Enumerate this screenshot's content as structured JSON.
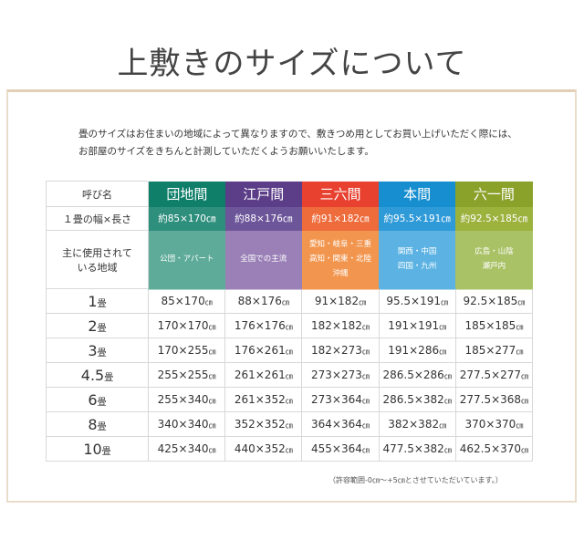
{
  "title": "上敷きのサイズについて",
  "intro": [
    "畳のサイズはお住まいの地域によって異なりますので、敷きつめ用としてお買い上げいただく際には、",
    "お部屋のサイズをきちんと計測していただくようお願いいたします。"
  ],
  "table": {
    "row_labels": {
      "name": "呼び名",
      "size": "１畳の幅×長さ",
      "region": [
        "主に使用されて",
        "いる地域"
      ]
    },
    "columns": [
      {
        "name": "団地間",
        "size": "約85×170㎝",
        "region": [
          "公団・アパート"
        ],
        "colors": [
          "#0f7f6a",
          "#2f8f7d",
          "#5eab99"
        ]
      },
      {
        "name": "江戸間",
        "size": "約88×176㎝",
        "region": [
          "全国での主流"
        ],
        "colors": [
          "#5b3d88",
          "#6c5599",
          "#9a80b7"
        ]
      },
      {
        "name": "三六間",
        "size": "約91×182㎝",
        "region": [
          "愛知・岐阜・三重",
          "高知・関東・北陸",
          "沖縄"
        ],
        "colors": [
          "#e8412f",
          "#ee6b3b",
          "#f2964f"
        ]
      },
      {
        "name": "本間",
        "size": "約95.5×191㎝",
        "region": [
          "関西・中国",
          "四国・九州"
        ],
        "colors": [
          "#168ecf",
          "#2f9ad8",
          "#5cb3e3"
        ]
      },
      {
        "name": "六一間",
        "size": "約92.5×185㎝",
        "region": [
          "広島・山陰",
          "瀬戸内"
        ],
        "colors": [
          "#8aa12a",
          "#9bb23d",
          "#aac266"
        ]
      }
    ],
    "unit": "㎝",
    "rows": [
      {
        "n": "1",
        "u": "畳",
        "v": [
          "85×170",
          "88×176",
          "91×182",
          "95.5×191",
          "92.5×185"
        ]
      },
      {
        "n": "2",
        "u": "畳",
        "v": [
          "170×170",
          "176×176",
          "182×182",
          "191×191",
          "185×185"
        ]
      },
      {
        "n": "3",
        "u": "畳",
        "v": [
          "170×255",
          "176×261",
          "182×273",
          "191×286",
          "185×277"
        ]
      },
      {
        "n": "4.5",
        "u": "畳",
        "v": [
          "255×255",
          "261×261",
          "273×273",
          "286.5×286",
          "277.5×277"
        ]
      },
      {
        "n": "6",
        "u": "畳",
        "v": [
          "255×340",
          "261×352",
          "273×364",
          "286.5×382",
          "277.5×368"
        ]
      },
      {
        "n": "8",
        "u": "畳",
        "v": [
          "340×340",
          "352×352",
          "364×364",
          "382×382",
          "370×370"
        ]
      },
      {
        "n": "10",
        "u": "畳",
        "v": [
          "425×340",
          "440×352",
          "455×364",
          "477.5×382",
          "462.5×370"
        ]
      }
    ]
  },
  "note": "（許容範囲-0㎝～+5㎝とさせていただいています。）"
}
